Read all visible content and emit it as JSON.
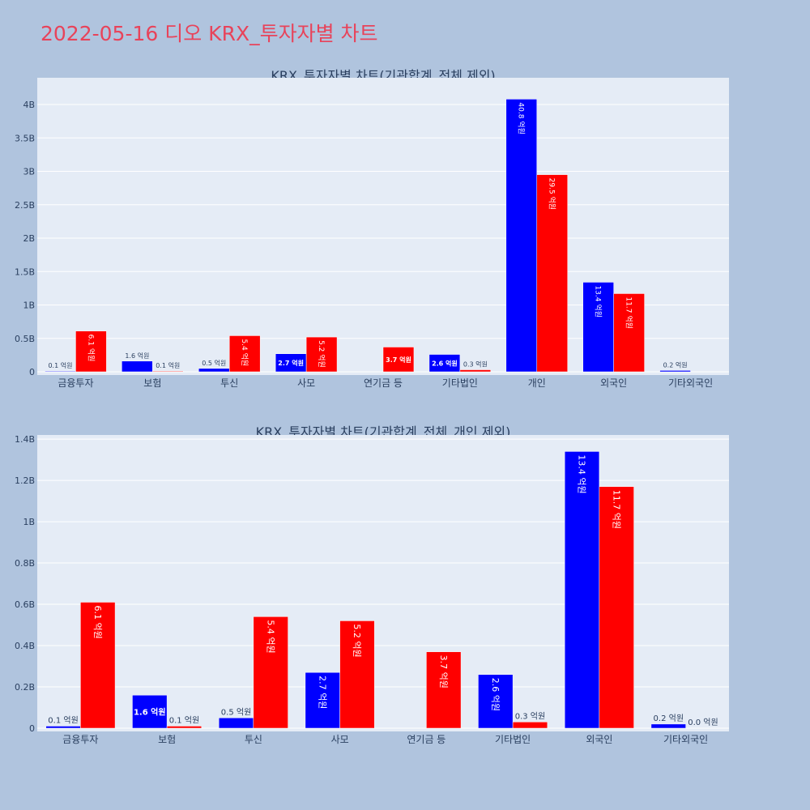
{
  "page": {
    "title": "2022-05-16 디오 KRX_투자자별 차트"
  },
  "colors": {
    "series1": "#0000ff",
    "series2": "#ff0000",
    "plot_bg": "#e5ecf6",
    "page_bg": "#b0c4de",
    "title": "#e8435a",
    "axis_text": "#2a3f5f"
  },
  "chart_data": [
    {
      "type": "bar",
      "title": "KRX_투자자별 차트(기관합계_전체 제외)",
      "categories": [
        "금융투자",
        "보험",
        "투신",
        "사모",
        "연기금 등",
        "기타법인",
        "개인",
        "외국인",
        "기타외국인"
      ],
      "series": [
        {
          "values": [
            0.01,
            0.16,
            0.05,
            0.27,
            0,
            0.26,
            4.08,
            1.34,
            0.02
          ],
          "labels": [
            "0.1 억원",
            "1.6 억원",
            "0.5 억원",
            "2.7 억원",
            "",
            "2.6 억원",
            "40.8 억원",
            "13.4 억원",
            "0.2 억원"
          ]
        },
        {
          "values": [
            0.61,
            0.01,
            0.54,
            0.52,
            0.37,
            0.03,
            2.95,
            1.17,
            0
          ],
          "labels": [
            "6.1 억원",
            "0.1 억원",
            "5.4 억원",
            "5.2 억원",
            "3.7 억원",
            "0.3 억원",
            "29.5 억원",
            "11.7 억원",
            ""
          ]
        }
      ],
      "ylim": [
        0,
        4.4
      ],
      "yticks": [
        0,
        0.5,
        1,
        1.5,
        2,
        2.5,
        3,
        3.5,
        4
      ],
      "ytick_labels": [
        "0",
        "0.5B",
        "1B",
        "1.5B",
        "2B",
        "2.5B",
        "3B",
        "3.5B",
        "4B"
      ],
      "grid": true
    },
    {
      "type": "bar",
      "title": "KRX_투자자별 차트(기관합계_전체_개인 제외)",
      "categories": [
        "금융투자",
        "보험",
        "투신",
        "사모",
        "연기금 등",
        "기타법인",
        "외국인",
        "기타외국인"
      ],
      "series": [
        {
          "values": [
            0.01,
            0.16,
            0.05,
            0.27,
            0,
            0.26,
            1.34,
            0.02
          ],
          "labels": [
            "0.1 억원",
            "1.6 억원",
            "0.5 억원",
            "2.7 억원",
            "",
            "2.6 억원",
            "13.4 억원",
            "0.2 억원"
          ]
        },
        {
          "values": [
            0.61,
            0.01,
            0.54,
            0.52,
            0.37,
            0.03,
            1.17,
            0.0
          ],
          "labels": [
            "6.1 억원",
            "0.1 억원",
            "5.4 억원",
            "5.2 억원",
            "3.7 억원",
            "0.3 억원",
            "11.7 억원",
            "0.0 억원"
          ]
        }
      ],
      "ylim": [
        0,
        1.42
      ],
      "yticks": [
        0,
        0.2,
        0.4,
        0.6,
        0.8,
        1,
        1.2,
        1.4
      ],
      "ytick_labels": [
        "0",
        "0.2B",
        "0.4B",
        "0.6B",
        "0.8B",
        "1B",
        "1.2B",
        "1.4B"
      ],
      "grid": true
    }
  ]
}
